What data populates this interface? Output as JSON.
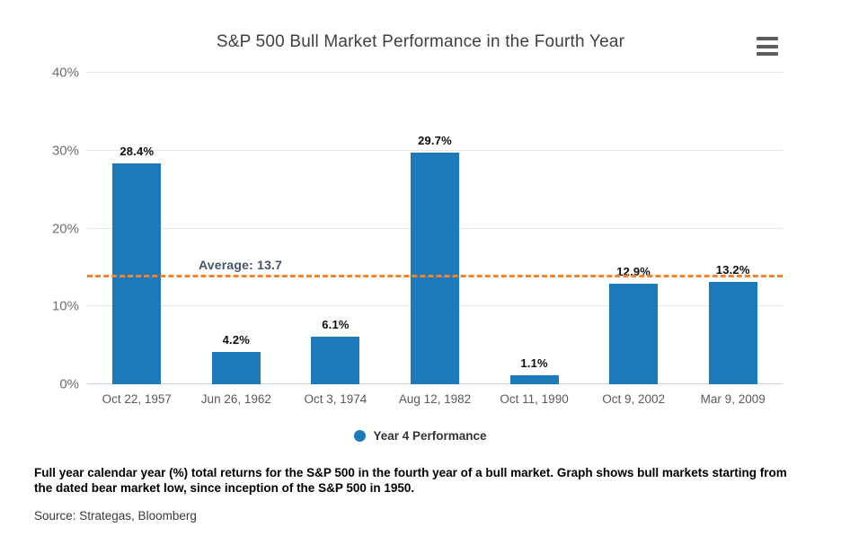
{
  "header": {
    "title": "S&P 500 Bull Market Performance in the Fourth Year",
    "menu_icon": "hamburger-menu-icon"
  },
  "chart_data": {
    "type": "bar",
    "title": "S&P 500 Bull Market Performance in the Fourth Year",
    "categories": [
      "Oct 22, 1957",
      "Jun 26, 1962",
      "Oct 3, 1974",
      "Aug 12, 1982",
      "Oct 11, 1990",
      "Oct 9, 2002",
      "Mar 9, 2009"
    ],
    "series": [
      {
        "name": "Year 4 Performance",
        "values": [
          28.4,
          4.2,
          6.1,
          29.7,
          1.1,
          12.9,
          13.2
        ],
        "color": "#1c79ba"
      }
    ],
    "data_labels": [
      "28.4%",
      "4.2%",
      "6.1%",
      "29.7%",
      "1.1%",
      "12.9%",
      "13.2%"
    ],
    "average_line": {
      "value": 13.7,
      "label": "Average: 13.7",
      "line_color": "#f28430",
      "label_color": "#44546b"
    },
    "xlabel": "",
    "ylabel": "",
    "ylim": [
      0,
      40
    ],
    "yticks": [
      0,
      10,
      20,
      30,
      40
    ],
    "ytick_labels": [
      "0%",
      "10%",
      "20%",
      "30%",
      "40%"
    ],
    "grid": true,
    "legend": {
      "position": "bottom",
      "items": [
        {
          "label": "Year 4 Performance",
          "color": "#1c79ba"
        }
      ]
    }
  },
  "footer": {
    "note": "Full year calendar year (%) total returns for the S&P 500 in the fourth year of a bull market. Graph shows bull markets starting from the dated bear market low, since inception of the S&P 500 in 1950.",
    "source": "Source: Strategas, Bloomberg"
  },
  "colors": {
    "bar": "#1c79ba",
    "average_dash": "#f28430",
    "average_label": "#44546b",
    "gridline": "#e7e7e7",
    "axis_line": "#ccd6eb",
    "title_text": "#3f3f3f",
    "axis_text": "#6f6f6f"
  }
}
